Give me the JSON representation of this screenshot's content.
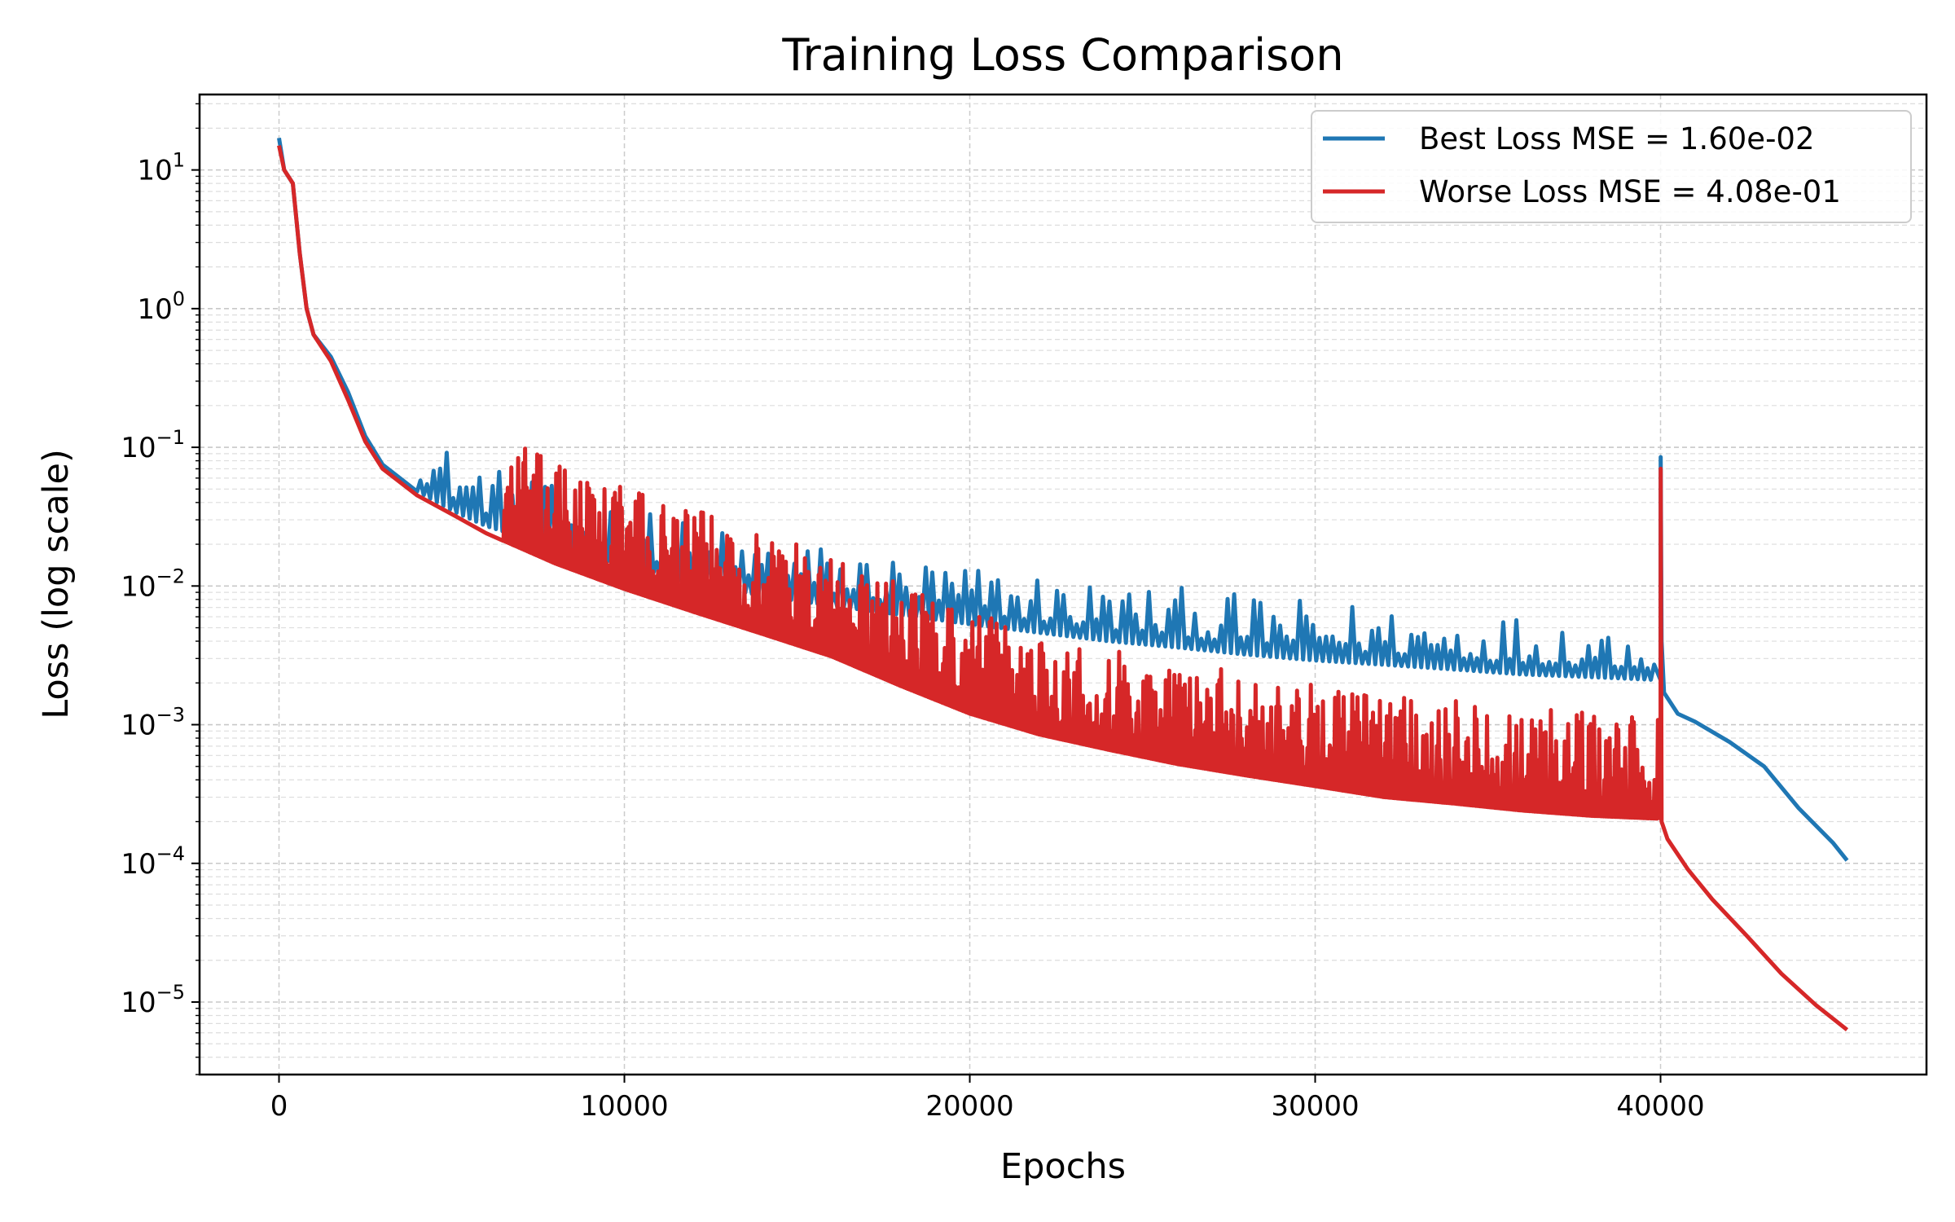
{
  "chart_data": {
    "type": "line",
    "title": "Training Loss Comparison",
    "xlabel": "Epochs",
    "ylabel": "Loss (log scale)",
    "xlim": [
      -2300,
      47700
    ],
    "ylim": [
      3e-06,
      35
    ],
    "yscale": "log",
    "grid": true,
    "legend_position": "top-right",
    "x_ticks": [
      0,
      10000,
      20000,
      30000,
      40000
    ],
    "x_tick_labels": [
      "0",
      "10000",
      "20000",
      "30000",
      "40000"
    ],
    "y_ticks": [
      {
        "value": 10,
        "base": "10",
        "exp": "1"
      },
      {
        "value": 1,
        "base": "10",
        "exp": "0"
      },
      {
        "value": 0.1,
        "base": "10",
        "exp": "−1"
      },
      {
        "value": 0.01,
        "base": "10",
        "exp": "−2"
      },
      {
        "value": 0.001,
        "base": "10",
        "exp": "−3"
      },
      {
        "value": 0.0001,
        "base": "10",
        "exp": "−4"
      },
      {
        "value": 1e-05,
        "base": "10",
        "exp": "−5"
      }
    ],
    "series": [
      {
        "name": "Best Loss MSE = 1.60e-02",
        "color": "#1f77b4",
        "baseline": [
          [
            0,
            17
          ],
          [
            150,
            10
          ],
          [
            400,
            8
          ],
          [
            600,
            2.5
          ],
          [
            800,
            1.0
          ],
          [
            1000,
            0.65
          ],
          [
            1500,
            0.45
          ],
          [
            2000,
            0.25
          ],
          [
            2500,
            0.12
          ],
          [
            3000,
            0.075
          ],
          [
            4000,
            0.048
          ],
          [
            5000,
            0.035
          ],
          [
            6000,
            0.027
          ],
          [
            8000,
            0.019
          ],
          [
            10000,
            0.014
          ],
          [
            12000,
            0.0105
          ],
          [
            14000,
            0.0085
          ],
          [
            16000,
            0.0072
          ],
          [
            18000,
            0.0062
          ],
          [
            20000,
            0.0053
          ],
          [
            22000,
            0.0046
          ],
          [
            24000,
            0.004
          ],
          [
            26000,
            0.0036
          ],
          [
            28000,
            0.0032
          ],
          [
            30000,
            0.0029
          ],
          [
            32000,
            0.0027
          ],
          [
            34000,
            0.0025
          ],
          [
            36000,
            0.0023
          ],
          [
            38000,
            0.0022
          ],
          [
            39900,
            0.0021
          ],
          [
            40000,
            0.0021
          ],
          [
            40005,
            0.085
          ],
          [
            40030,
            0.004
          ],
          [
            40100,
            0.0017
          ],
          [
            40500,
            0.0012
          ],
          [
            41000,
            0.00105
          ],
          [
            42000,
            0.00075
          ],
          [
            43000,
            0.0005
          ],
          [
            44000,
            0.00025
          ],
          [
            45000,
            0.00014
          ],
          [
            45400,
            0.000105
          ]
        ],
        "spikes": {
          "start": 4000,
          "end": 39900,
          "every": 190,
          "ratio_min": 1.2,
          "ratio_max": 2.7
        }
      },
      {
        "name": "Worse Loss MSE = 4.08e-01",
        "color": "#d62728",
        "baseline": [
          [
            0,
            15
          ],
          [
            150,
            10
          ],
          [
            400,
            8
          ],
          [
            600,
            2.5
          ],
          [
            800,
            1.0
          ],
          [
            1000,
            0.65
          ],
          [
            1500,
            0.42
          ],
          [
            2000,
            0.22
          ],
          [
            2500,
            0.11
          ],
          [
            3000,
            0.07
          ],
          [
            4000,
            0.045
          ],
          [
            5000,
            0.033
          ],
          [
            6000,
            0.024
          ],
          [
            8000,
            0.0145
          ],
          [
            10000,
            0.0095
          ],
          [
            12000,
            0.0065
          ],
          [
            14000,
            0.0045
          ],
          [
            16000,
            0.0031
          ],
          [
            18000,
            0.0019
          ],
          [
            20000,
            0.0012
          ],
          [
            22000,
            0.00085
          ],
          [
            24000,
            0.00066
          ],
          [
            26000,
            0.00052
          ],
          [
            28000,
            0.00043
          ],
          [
            30000,
            0.00036
          ],
          [
            32000,
            0.0003
          ],
          [
            34000,
            0.00027
          ],
          [
            36000,
            0.00024
          ],
          [
            38000,
            0.00022
          ],
          [
            39900,
            0.00021
          ],
          [
            40000,
            0.00021
          ],
          [
            40005,
            0.07
          ],
          [
            40030,
            0.0002
          ],
          [
            40200,
            0.00015
          ],
          [
            40800,
            9e-05
          ],
          [
            41500,
            5.5e-05
          ],
          [
            42500,
            3e-05
          ],
          [
            43500,
            1.6e-05
          ],
          [
            44500,
            9.5e-06
          ],
          [
            45400,
            6.3e-06
          ]
        ],
        "spikes": {
          "start": 6500,
          "end": 39900,
          "every": 50,
          "ratio_min": 1.3,
          "ratio_max": 5.5
        }
      }
    ]
  }
}
